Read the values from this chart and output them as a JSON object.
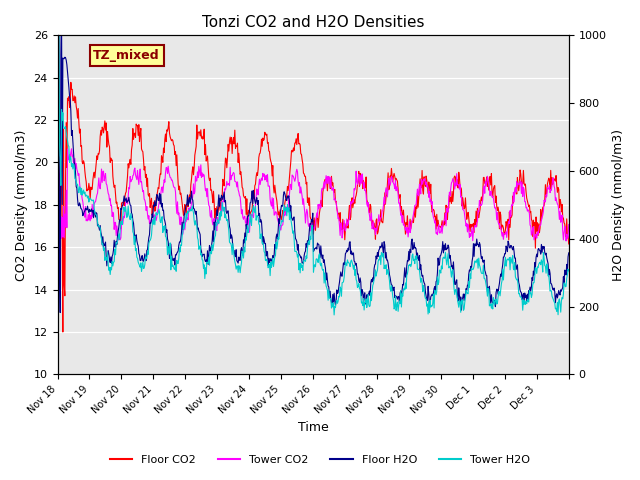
{
  "title": "Tonzi CO2 and H2O Densities",
  "xlabel": "Time",
  "ylabel_left": "CO2 Density (mmol/m3)",
  "ylabel_right": "H2O Density (mmol/m3)",
  "annotation_text": "TZ_mixed",
  "annotation_color": "#8B0000",
  "annotation_bg": "#FFFF99",
  "annotation_border": "#8B0000",
  "left_ylim": [
    10,
    26
  ],
  "right_ylim": [
    0,
    1000
  ],
  "background_color": "#E8E8E8",
  "tick_positions": [
    0,
    1,
    2,
    3,
    4,
    5,
    6,
    7,
    8,
    9,
    10,
    11,
    12,
    13,
    14,
    15,
    16
  ],
  "tick_labels": [
    "Nov 18",
    "Nov 19",
    "Nov 20",
    "Nov 21",
    "Nov 22",
    "Nov 23",
    "Nov 24",
    "Nov 25",
    "Nov 26",
    "Nov 27",
    "Nov 28",
    "Nov 29",
    "Nov 30",
    "Dec 1",
    "Dec 2",
    "Dec 3",
    ""
  ],
  "colors": {
    "floor_co2": "#FF0000",
    "tower_co2": "#FF00FF",
    "floor_h2o": "#00008B",
    "tower_h2o": "#00CCCC"
  },
  "legend_labels": [
    "Floor CO2",
    "Tower CO2",
    "Floor H2O",
    "Tower H2O"
  ]
}
